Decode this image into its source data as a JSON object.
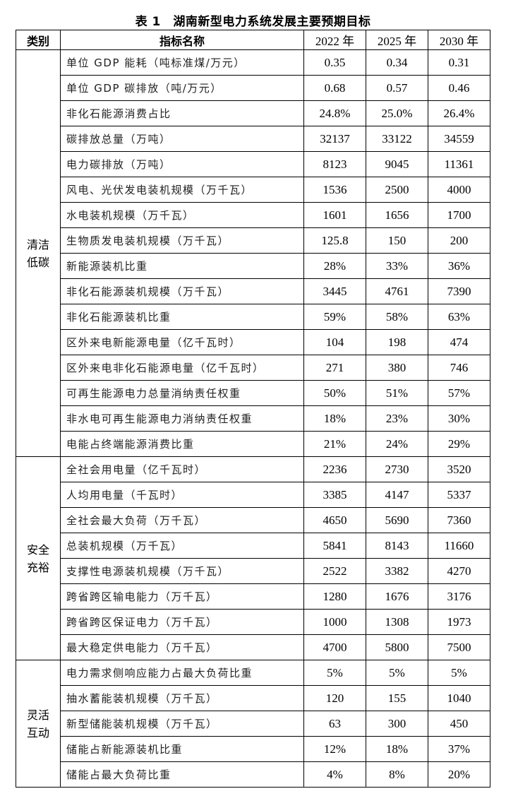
{
  "title": "表 1　湖南新型电力系统发展主要预期目标",
  "headers": [
    "类别",
    "指标名称",
    "2022 年",
    "2025 年",
    "2030 年"
  ],
  "groups": [
    {
      "category": "清洁\n低碳",
      "rows": [
        [
          "单位 GDP 能耗（吨标准煤/万元）",
          "0.35",
          "0.34",
          "0.31"
        ],
        [
          "单位 GDP 碳排放（吨/万元）",
          "0.68",
          "0.57",
          "0.46"
        ],
        [
          "非化石能源消费占比",
          "24.8%",
          "25.0%",
          "26.4%"
        ],
        [
          "碳排放总量（万吨）",
          "32137",
          "33122",
          "34559"
        ],
        [
          "电力碳排放（万吨）",
          "8123",
          "9045",
          "11361"
        ],
        [
          "风电、光伏发电装机规模（万千瓦）",
          "1536",
          "2500",
          "4000"
        ],
        [
          "水电装机规模（万千瓦）",
          "1601",
          "1656",
          "1700"
        ],
        [
          "生物质发电装机规模（万千瓦）",
          "125.8",
          "150",
          "200"
        ],
        [
          "新能源装机比重",
          "28%",
          "33%",
          "36%"
        ],
        [
          "非化石能源装机规模（万千瓦）",
          "3445",
          "4761",
          "7390"
        ],
        [
          "非化石能源装机比重",
          "59%",
          "58%",
          "63%"
        ],
        [
          "区外来电新能源电量（亿千瓦时）",
          "104",
          "198",
          "474"
        ],
        [
          "区外来电非化石能源电量（亿千瓦时）",
          "271",
          "380",
          "746"
        ],
        [
          "可再生能源电力总量消纳责任权重",
          "50%",
          "51%",
          "57%"
        ],
        [
          "非水电可再生能源电力消纳责任权重",
          "18%",
          "23%",
          "30%"
        ],
        [
          "电能占终端能源消费比重",
          "21%",
          "24%",
          "29%"
        ]
      ]
    },
    {
      "category": "安全\n充裕",
      "rows": [
        [
          "全社会用电量（亿千瓦时）",
          "2236",
          "2730",
          "3520"
        ],
        [
          "人均用电量（千瓦时）",
          "3385",
          "4147",
          "5337"
        ],
        [
          "全社会最大负荷（万千瓦）",
          "4650",
          "5690",
          "7360"
        ],
        [
          "总装机规模（万千瓦）",
          "5841",
          "8143",
          "11660"
        ],
        [
          "支撑性电源装机规模（万千瓦）",
          "2522",
          "3382",
          "4270"
        ],
        [
          "跨省跨区输电能力（万千瓦）",
          "1280",
          "1676",
          "3176"
        ],
        [
          "跨省跨区保证电力（万千瓦）",
          "1000",
          "1308",
          "1973"
        ],
        [
          "最大稳定供电能力（万千瓦）",
          "4700",
          "5800",
          "7500"
        ]
      ]
    },
    {
      "category": "灵活\n互动",
      "rows": [
        [
          "电力需求侧响应能力占最大负荷比重",
          "5%",
          "5%",
          "5%"
        ],
        [
          "抽水蓄能装机规模（万千瓦）",
          "120",
          "155",
          "1040"
        ],
        [
          "新型储能装机规模（万千瓦）",
          "63",
          "300",
          "450"
        ],
        [
          "储能占新能源装机比重",
          "12%",
          "18%",
          "37%"
        ],
        [
          "储能占最大负荷比重",
          "4%",
          "8%",
          "20%"
        ]
      ]
    }
  ]
}
